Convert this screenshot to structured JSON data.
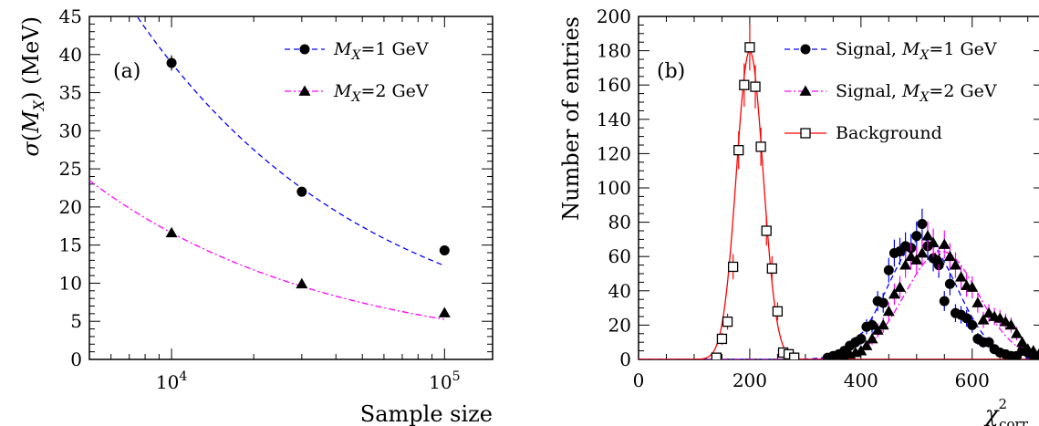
{
  "chart_data": [
    {
      "type": "scatter",
      "panel_label": "(a)",
      "xlabel": "Sample size",
      "ylabel": "σ(M_X) (MeV)",
      "xscale": "log",
      "xlim": [
        5000,
        150000
      ],
      "ylim": [
        0,
        45
      ],
      "xticks": [
        {
          "value": 10000,
          "base": "10",
          "exp": "4"
        },
        {
          "value": 100000,
          "base": "10",
          "exp": "5"
        }
      ],
      "yticks": [
        0,
        5,
        10,
        15,
        20,
        25,
        30,
        35,
        40,
        45
      ],
      "legend_position": "top-right",
      "series": [
        {
          "name": "M_X=1 GeV",
          "legend_main": "M",
          "legend_sub": "X",
          "legend_rest": "=1 GeV",
          "color": "#0000ff",
          "marker": "circle",
          "fit_style": "dashed",
          "points": [
            [
              10000,
              38.9,
              1.0
            ],
            [
              30000,
              22.0,
              0.4
            ],
            [
              100000,
              14.3,
              0.3
            ]
          ],
          "fit_a": 3890,
          "fit_b": 0.5
        },
        {
          "name": "M_X=2 GeV",
          "legend_main": "M",
          "legend_sub": "X",
          "legend_rest": "=2 GeV",
          "color": "#ff00ff",
          "marker": "triangle",
          "fit_style": "dashdot",
          "points": [
            [
              10000,
              16.6,
              0.3
            ],
            [
              30000,
              9.9,
              0.2
            ],
            [
              100000,
              6.1,
              0.2
            ]
          ],
          "fit_a": 1660,
          "fit_b": 0.5
        }
      ]
    },
    {
      "type": "scatter",
      "panel_label": "(b)",
      "xlabel_main": "χ",
      "xlabel_sup": "2",
      "xlabel_sub": "corr",
      "ylabel": "Number of entries",
      "xlim": [
        0,
        730
      ],
      "ylim": [
        0,
        200
      ],
      "xticks": [
        0,
        200,
        400,
        600
      ],
      "yticks": [
        0,
        20,
        40,
        60,
        80,
        100,
        120,
        140,
        160,
        180,
        200
      ],
      "legend_position": "top-right",
      "series": [
        {
          "name": "Signal, M_X=1 GeV",
          "legend_main": "Signal, M",
          "legend_sub": "X",
          "legend_rest": "=1 GeV",
          "color": "#0000ff",
          "marker": "circle",
          "fit_style": "dashed",
          "points": [
            [
              340,
              1
            ],
            [
              350,
              2
            ],
            [
              360,
              3
            ],
            [
              370,
              5
            ],
            [
              380,
              8
            ],
            [
              390,
              10
            ],
            [
              400,
              12
            ],
            [
              410,
              19
            ],
            [
              420,
              20
            ],
            [
              430,
              34
            ],
            [
              440,
              33
            ],
            [
              450,
              52
            ],
            [
              460,
              62
            ],
            [
              470,
              63
            ],
            [
              480,
              66
            ],
            [
              490,
              65
            ],
            [
              500,
              72
            ],
            [
              510,
              79
            ],
            [
              520,
              66
            ],
            [
              530,
              59
            ],
            [
              540,
              55
            ],
            [
              550,
              34
            ],
            [
              560,
              44
            ],
            [
              570,
              27
            ],
            [
              580,
              26
            ],
            [
              590,
              24
            ],
            [
              600,
              20
            ],
            [
              610,
              12
            ],
            [
              620,
              10
            ],
            [
              630,
              10
            ],
            [
              640,
              6
            ],
            [
              650,
              4
            ],
            [
              660,
              3
            ],
            [
              670,
              2
            ],
            [
              680,
              2
            ],
            [
              690,
              5
            ],
            [
              700,
              4
            ],
            [
              710,
              2
            ],
            [
              720,
              1
            ]
          ],
          "fit_amp": 70,
          "fit_mean": 510,
          "fit_sigma": 62
        },
        {
          "name": "Signal, M_X=2 GeV",
          "legend_main": "Signal, M",
          "legend_sub": "X",
          "legend_rest": "=2 GeV",
          "color": "#ff00ff",
          "marker": "triangle",
          "fit_style": "dashdot",
          "points": [
            [
              370,
              1
            ],
            [
              380,
              3
            ],
            [
              390,
              4
            ],
            [
              400,
              5
            ],
            [
              410,
              8
            ],
            [
              420,
              12
            ],
            [
              430,
              17
            ],
            [
              440,
              20
            ],
            [
              450,
              28
            ],
            [
              460,
              38
            ],
            [
              470,
              42
            ],
            [
              480,
              55
            ],
            [
              490,
              60
            ],
            [
              500,
              58
            ],
            [
              510,
              62
            ],
            [
              520,
              72
            ],
            [
              530,
              68
            ],
            [
              540,
              58
            ],
            [
              550,
              67
            ],
            [
              560,
              60
            ],
            [
              570,
              55
            ],
            [
              580,
              48
            ],
            [
              590,
              43
            ],
            [
              600,
              42
            ],
            [
              610,
              33
            ],
            [
              620,
              23
            ],
            [
              630,
              27
            ],
            [
              640,
              25
            ],
            [
              650,
              24
            ],
            [
              660,
              22
            ],
            [
              670,
              20
            ],
            [
              680,
              15
            ],
            [
              690,
              10
            ],
            [
              700,
              6
            ],
            [
              710,
              5
            ],
            [
              720,
              3
            ]
          ],
          "fit_amp": 63,
          "fit_mean": 545,
          "fit_sigma": 66
        },
        {
          "name": "Background",
          "legend_main": "Background",
          "legend_sub": "",
          "legend_rest": "",
          "color": "#ff0000",
          "marker": "open-square",
          "fit_style": "solid",
          "points": [
            [
              140,
              1
            ],
            [
              150,
              12
            ],
            [
              160,
              22
            ],
            [
              170,
              54
            ],
            [
              180,
              122
            ],
            [
              190,
              160
            ],
            [
              200,
              182
            ],
            [
              210,
              159
            ],
            [
              220,
              124
            ],
            [
              230,
              75
            ],
            [
              240,
              53
            ],
            [
              250,
              28
            ],
            [
              260,
              4
            ],
            [
              270,
              3
            ],
            [
              280,
              1
            ]
          ],
          "fit_amp": 180,
          "fit_mean": 200,
          "fit_sigma": 24
        }
      ]
    }
  ]
}
